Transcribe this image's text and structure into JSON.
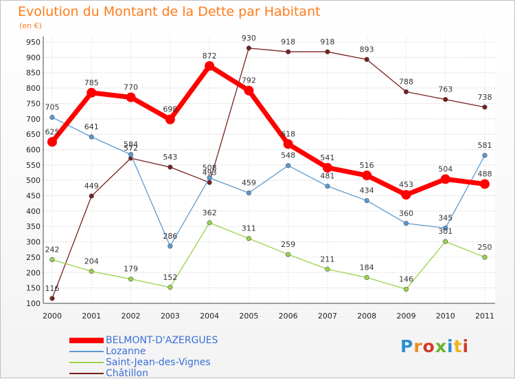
{
  "chart_data": {
    "type": "line",
    "title": "Evolution du Montant de la Dette par Habitant",
    "unit": "(en €)",
    "categories": [
      "2000",
      "2001",
      "2002",
      "2003",
      "2004",
      "2005",
      "2006",
      "2007",
      "2008",
      "2009",
      "2010",
      "2011"
    ],
    "ylim": [
      100,
      950
    ],
    "yticks": [
      100,
      150,
      200,
      250,
      300,
      350,
      400,
      450,
      500,
      550,
      600,
      650,
      700,
      750,
      800,
      850,
      900,
      950
    ],
    "grid": true,
    "legend_position": "bottom-left",
    "series": [
      {
        "name": "Châtillon",
        "color": "#7a1e1e",
        "values": [
          116,
          449,
          572,
          543,
          493,
          930,
          918,
          918,
          893,
          788,
          763,
          738
        ]
      },
      {
        "name": "Lozanne",
        "color": "#5a9ad2",
        "values": [
          705,
          641,
          584,
          286,
          508,
          459,
          548,
          481,
          434,
          360,
          345,
          581
        ]
      },
      {
        "name": "Saint-Jean-des-Vignes",
        "color": "#9ad24a",
        "values": [
          242,
          204,
          179,
          152,
          362,
          311,
          259,
          211,
          184,
          146,
          301,
          250
        ]
      },
      {
        "name": "BELMONT-D'AZERGUES",
        "color": "#ff0000",
        "values": [
          625,
          785,
          770,
          698,
          872,
          792,
          618,
          541,
          516,
          453,
          504,
          488
        ]
      }
    ],
    "legend_order": [
      "BELMONT-D'AZERGUES",
      "Lozanne",
      "Saint-Jean-des-Vignes",
      "Châtillon"
    ]
  },
  "logo": {
    "text": "Proxiti"
  }
}
